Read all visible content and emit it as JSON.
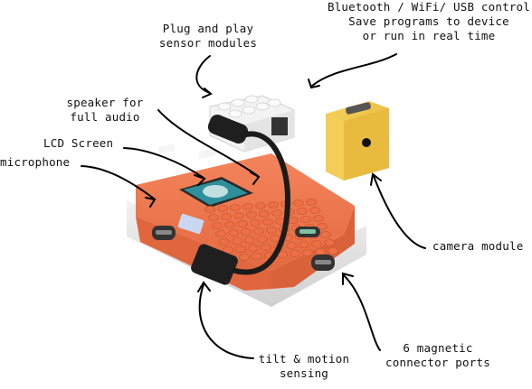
{
  "labels": {
    "sensor_modules": "Plug and play\nsensor modules",
    "connectivity": "Bluetooth / WiFi/ USB control\nSave programs to device\nor run in real time",
    "speaker": "speaker for\nfull audio",
    "lcd": "LCD Screen",
    "microphone": "microphone",
    "camera": "camera module",
    "tilt": "tilt & motion\nsensing",
    "ports": "6 magnetic\nconnector ports"
  },
  "colors": {
    "body_orange": "#f07a4f",
    "body_shadow": "#d9623a",
    "base_grey": "#e6e6e6",
    "camera_yellow": "#f1c54a",
    "screen_teal": "#2f8f9a",
    "cable": "#1b1b1b"
  }
}
